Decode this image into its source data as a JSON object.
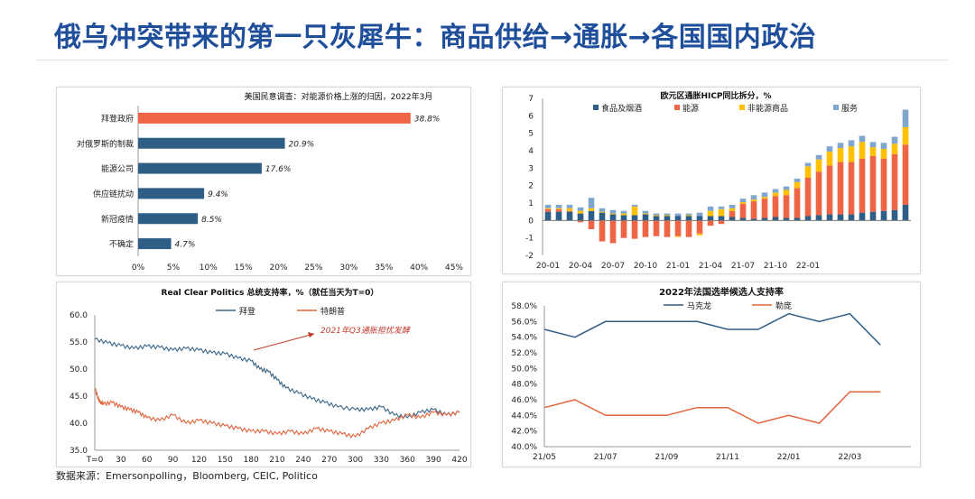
{
  "page": {
    "title": "俄乌冲突带来的第一只灰犀牛：商品供给→通胀→各国国内政治",
    "source": "数据来源：Emersonpolling，Bloomberg, CEIC, Politico"
  },
  "chart_data": [
    {
      "type": "bar",
      "orientation": "horizontal",
      "title": "美国民意调查：对能源价格上涨的归因，2022年3月",
      "categories": [
        "拜登政府",
        "对俄罗斯的制裁",
        "能源公司",
        "供应链扰动",
        "新冠疫情",
        "不确定"
      ],
      "values": [
        38.8,
        20.9,
        17.6,
        9.4,
        8.5,
        4.7
      ],
      "value_labels": [
        "38.8%",
        "20.9%",
        "17.6%",
        "9.4%",
        "8.5%",
        "4.7%"
      ],
      "xlim": [
        0,
        45
      ],
      "xticks": [
        "0%",
        "5%",
        "10%",
        "15%",
        "20%",
        "25%",
        "30%",
        "35%",
        "40%",
        "45%"
      ],
      "colors": {
        "highlight": "#ef6445",
        "default": "#2e5d86"
      },
      "grid": false
    },
    {
      "type": "bar",
      "stacked": true,
      "title": "欧元区通胀HICP同比拆分，%",
      "ylim": [
        -2,
        7
      ],
      "yticks": [
        "-2",
        "-1",
        "0",
        "1",
        "2",
        "3",
        "4",
        "5",
        "6",
        "7"
      ],
      "xticks": [
        "20-01",
        "20-04",
        "20-07",
        "20-10",
        "21-01",
        "21-04",
        "21-07",
        "21-10",
        "22-01"
      ],
      "legend_position": "top",
      "series": [
        {
          "name": "食品及烟酒",
          "color": "#2e5d86",
          "values": [
            0.5,
            0.5,
            0.5,
            0.4,
            0.55,
            0.45,
            0.35,
            0.3,
            0.3,
            0.35,
            0.25,
            0.25,
            0.25,
            0.25,
            0.25,
            0.25,
            0.25,
            0.2,
            0.15,
            0.1,
            0.15,
            0.2,
            0.15,
            0.15,
            0.25,
            0.3,
            0.35,
            0.35,
            0.35,
            0.45,
            0.5,
            0.55,
            0.6,
            0.9
          ]
        },
        {
          "name": "能源",
          "color": "#ef6445",
          "values": [
            0.15,
            0.15,
            0.05,
            -0.1,
            -0.5,
            -1.2,
            -1.3,
            -1.0,
            -1.05,
            -0.95,
            -0.9,
            -0.95,
            -0.9,
            -0.95,
            -0.75,
            -0.3,
            -0.2,
            0.35,
            0.8,
            1.0,
            1.1,
            1.2,
            1.3,
            1.7,
            2.2,
            2.5,
            2.8,
            3.0,
            3.0,
            3.1,
            3.2,
            3.0,
            3.2,
            3.45
          ]
        },
        {
          "name": "非能源商品",
          "color": "#ffc000",
          "values": [
            0.05,
            0.05,
            0.15,
            0.15,
            0.15,
            0.05,
            0.05,
            0.1,
            0.5,
            0.05,
            0.05,
            0.05,
            -0.05,
            0.05,
            -0.1,
            0.3,
            0.4,
            0.15,
            0.1,
            0.1,
            0.1,
            0.2,
            0.3,
            0.35,
            0.65,
            0.7,
            0.8,
            0.8,
            0.9,
            0.95,
            0.5,
            0.55,
            0.6,
            1.0
          ]
        },
        {
          "name": "服务",
          "color": "#7fa7ce",
          "values": [
            0.2,
            0.2,
            0.2,
            0.2,
            0.6,
            0.2,
            0.2,
            0.15,
            0.1,
            0.15,
            0.1,
            0.1,
            0.15,
            0.1,
            0.2,
            0.25,
            0.15,
            0.2,
            0.2,
            0.25,
            0.25,
            0.2,
            0.2,
            0.2,
            0.2,
            0.25,
            0.3,
            0.3,
            0.35,
            0.35,
            0.3,
            0.35,
            0.4,
            1.0
          ]
        }
      ]
    },
    {
      "type": "line",
      "title": "Real Clear Politics 总统支持率，%（就任当天为T=0）",
      "ylim": [
        35,
        60
      ],
      "yticks": [
        "35.0",
        "40.0",
        "45.0",
        "50.0",
        "55.0",
        "60.0"
      ],
      "xlim": [
        0,
        420
      ],
      "xticks": [
        "T=0",
        "30",
        "60",
        "90",
        "120",
        "150",
        "180",
        "210",
        "240",
        "270",
        "300",
        "330",
        "360",
        "390",
        "420"
      ],
      "legend_position": "top",
      "annotation": "2021年Q3通胀担忧发酵",
      "series": [
        {
          "name": "拜登",
          "color": "#3a6688",
          "x": [
            0,
            15,
            30,
            45,
            60,
            75,
            90,
            105,
            120,
            135,
            150,
            165,
            180,
            190,
            200,
            210,
            220,
            235,
            250,
            265,
            280,
            300,
            315,
            330,
            345,
            360,
            375,
            390,
            405,
            420
          ],
          "y": [
            55.5,
            54.8,
            54.3,
            53.8,
            54.2,
            54.0,
            53.5,
            53.8,
            53.5,
            53.0,
            52.8,
            52.0,
            51.5,
            50.0,
            49.5,
            48.0,
            46.5,
            45.5,
            44.5,
            43.8,
            43.0,
            42.5,
            42.5,
            43.0,
            41.5,
            41.0,
            42.0,
            42.5,
            41.5,
            42.0
          ]
        },
        {
          "name": "特朗普",
          "color": "#e0643c",
          "x": [
            0,
            5,
            10,
            20,
            30,
            40,
            50,
            60,
            75,
            90,
            105,
            120,
            135,
            150,
            165,
            180,
            195,
            210,
            225,
            240,
            255,
            270,
            285,
            300,
            315,
            330,
            345,
            360,
            375,
            390,
            405,
            420
          ],
          "y": [
            46.5,
            44.0,
            43.5,
            43.8,
            43.0,
            42.5,
            42.0,
            41.0,
            40.5,
            41.5,
            40.0,
            40.5,
            40.0,
            39.5,
            39.0,
            38.5,
            38.5,
            38.0,
            38.5,
            38.0,
            39.0,
            38.5,
            38.0,
            37.5,
            39.0,
            40.0,
            40.5,
            41.5,
            41.0,
            42.0,
            41.5,
            42.0
          ]
        }
      ]
    },
    {
      "type": "line",
      "title": "2022年法国选举候选人支持率",
      "ylim": [
        40,
        58
      ],
      "yticks": [
        "40.0%",
        "42.0%",
        "44.0%",
        "46.0%",
        "48.0%",
        "50.0%",
        "52.0%",
        "54.0%",
        "56.0%",
        "58.0%"
      ],
      "xticks": [
        "21/05",
        "21/07",
        "21/09",
        "21/11",
        "22/01",
        "22/03"
      ],
      "legend_position": "top",
      "series": [
        {
          "name": "马克龙",
          "color": "#2e5d86",
          "values": [
            55,
            54,
            56,
            56,
            56,
            56,
            55,
            55,
            57,
            56,
            57,
            53
          ]
        },
        {
          "name": "勒庞",
          "color": "#e0643c",
          "values": [
            45,
            46,
            44,
            44,
            44,
            45,
            45,
            43,
            44,
            43,
            47,
            47
          ]
        }
      ]
    }
  ]
}
